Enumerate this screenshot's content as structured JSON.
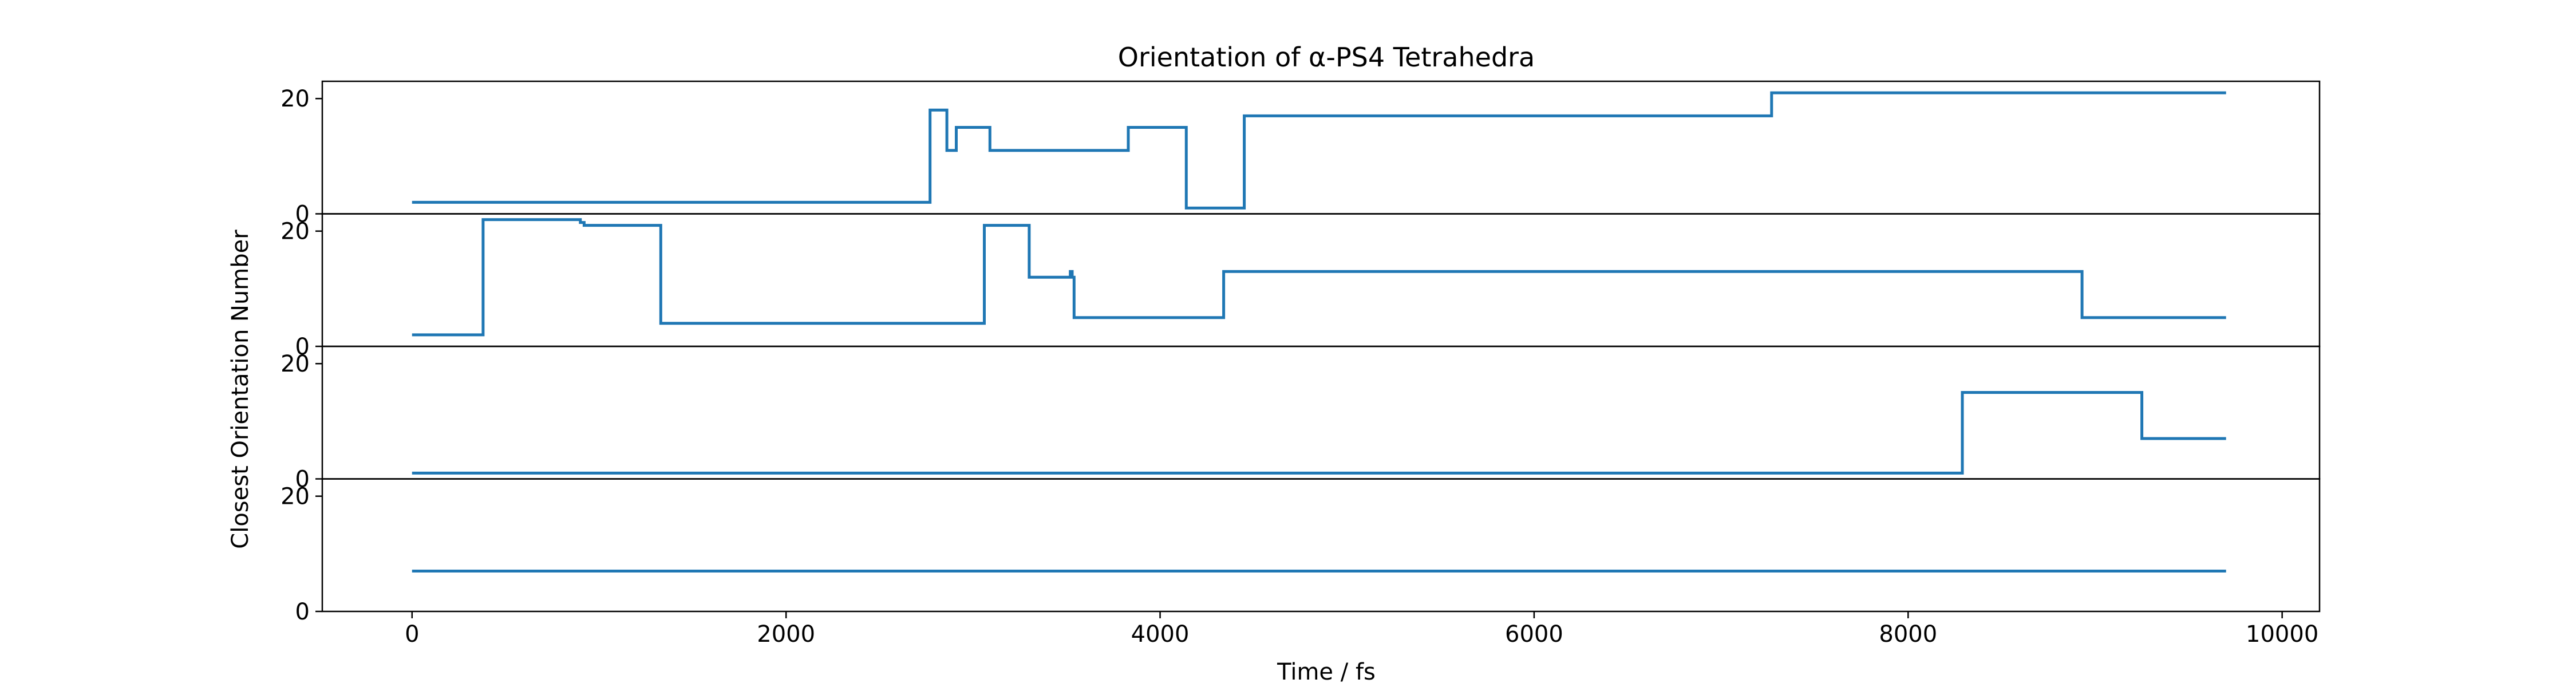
{
  "chart_data": {
    "type": "line",
    "title": "Orientation of α-PS4 Tetrahedra",
    "xlabel": "Time / fs",
    "ylabel": "Closest Orientation Number",
    "xlim": [
      -480,
      10200
    ],
    "ylim": [
      0,
      23
    ],
    "x_ticks": [
      0,
      2000,
      4000,
      6000,
      8000,
      10000
    ],
    "y_ticks": [
      0,
      20
    ],
    "grid": false,
    "line_color": "#1f77b4",
    "series": [
      {
        "x": [
          0,
          2770,
          2770,
          2860,
          2860,
          2910,
          2910,
          3090,
          3090,
          3830,
          3830,
          4140,
          4140,
          4450,
          4450,
          7270,
          7270,
          9700
        ],
        "y": [
          2,
          2,
          18,
          18,
          11,
          11,
          15,
          15,
          11,
          11,
          15,
          15,
          1,
          1,
          17,
          17,
          21,
          21
        ]
      },
      {
        "x": [
          0,
          380,
          380,
          900,
          900,
          920,
          920,
          1330,
          1330,
          3060,
          3060,
          3300,
          3300,
          3520,
          3520,
          3530,
          3530,
          3540,
          3540,
          4340,
          4340,
          8930,
          8930,
          9700
        ],
        "y": [
          2,
          2,
          22,
          22,
          21.5,
          21.5,
          21,
          21,
          4,
          4,
          21,
          21,
          12,
          12,
          13,
          13,
          12,
          12,
          5,
          5,
          13,
          13,
          5,
          5
        ]
      },
      {
        "x": [
          0,
          8290,
          8290,
          9250,
          9250,
          9700
        ],
        "y": [
          1,
          1,
          15,
          15,
          7,
          7
        ]
      },
      {
        "x": [
          0,
          9700
        ],
        "y": [
          7,
          7
        ]
      }
    ]
  }
}
